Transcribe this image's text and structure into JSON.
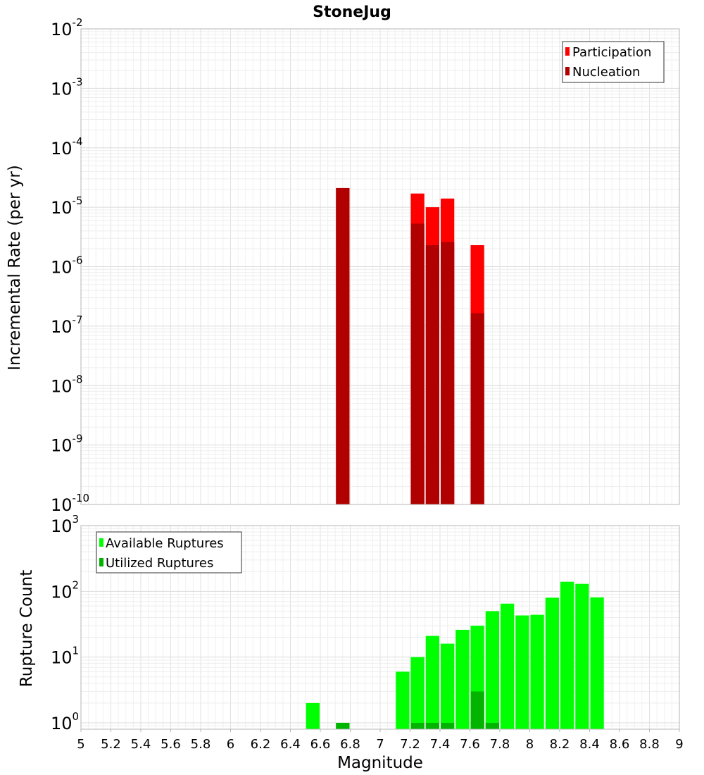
{
  "chart_data": [
    {
      "id": "rate",
      "type": "bar",
      "title": "StoneJug",
      "xlabel": "",
      "ylabel": "Incremental Rate (per yr)",
      "yscale": "log",
      "xlim": [
        5,
        9
      ],
      "ylim": [
        1e-10,
        0.01
      ],
      "ytick_exponents": [
        "-10",
        "-9",
        "-8",
        "-7",
        "-6",
        "-5",
        "-4",
        "-3",
        "-2"
      ],
      "ytick_base": "10",
      "legend": {
        "placement": "top-right",
        "entries": [
          {
            "label": "Participation",
            "color": "#ff0000"
          },
          {
            "label": "Nucleation",
            "color": "#b00000"
          }
        ]
      },
      "bin_width": 0.1,
      "series": [
        {
          "name": "Participation",
          "color": "#ff0000",
          "points": [
            {
              "x": 6.75,
              "y": 2.1e-05
            },
            {
              "x": 7.25,
              "y": 1.7e-05
            },
            {
              "x": 7.35,
              "y": 1e-05
            },
            {
              "x": 7.45,
              "y": 1.4e-05
            },
            {
              "x": 7.65,
              "y": 2.3e-06
            }
          ]
        },
        {
          "name": "Nucleation",
          "color": "#b00000",
          "points": [
            {
              "x": 6.75,
              "y": 2.1e-05
            },
            {
              "x": 7.25,
              "y": 5.3e-06
            },
            {
              "x": 7.35,
              "y": 2.3e-06
            },
            {
              "x": 7.45,
              "y": 2.6e-06
            },
            {
              "x": 7.65,
              "y": 1.65e-07
            }
          ]
        }
      ]
    },
    {
      "id": "count",
      "type": "bar",
      "title": "",
      "xlabel": "Magnitude",
      "ylabel": "Rupture Count",
      "yscale": "log",
      "xlim": [
        5,
        9
      ],
      "ylim": [
        0.8,
        1000
      ],
      "ytick_exponents": [
        "0",
        "1",
        "2",
        "3"
      ],
      "ytick_base": "10",
      "xtick_labels": [
        "5",
        "5.2",
        "5.4",
        "5.6",
        "5.8",
        "6",
        "6.2",
        "6.4",
        "6.6",
        "6.8",
        "7",
        "7.2",
        "7.4",
        "7.6",
        "7.8",
        "8",
        "8.2",
        "8.4",
        "8.6",
        "8.8",
        "9"
      ],
      "legend": {
        "placement": "top-left",
        "entries": [
          {
            "label": "Available Ruptures",
            "color": "#00ff00"
          },
          {
            "label": "Utilized Ruptures",
            "color": "#00b400"
          }
        ]
      },
      "bin_width": 0.1,
      "series": [
        {
          "name": "Available Ruptures",
          "color": "#00ff00",
          "points": [
            {
              "x": 6.55,
              "y": 2
            },
            {
              "x": 6.75,
              "y": 1
            },
            {
              "x": 7.15,
              "y": 6
            },
            {
              "x": 7.25,
              "y": 10
            },
            {
              "x": 7.35,
              "y": 21
            },
            {
              "x": 7.45,
              "y": 16
            },
            {
              "x": 7.55,
              "y": 26
            },
            {
              "x": 7.65,
              "y": 30
            },
            {
              "x": 7.75,
              "y": 50
            },
            {
              "x": 7.85,
              "y": 65
            },
            {
              "x": 7.95,
              "y": 43
            },
            {
              "x": 8.05,
              "y": 44
            },
            {
              "x": 8.15,
              "y": 80
            },
            {
              "x": 8.25,
              "y": 140
            },
            {
              "x": 8.35,
              "y": 130
            },
            {
              "x": 8.45,
              "y": 81
            }
          ]
        },
        {
          "name": "Utilized Ruptures",
          "color": "#00b400",
          "points": [
            {
              "x": 6.75,
              "y": 1
            },
            {
              "x": 7.25,
              "y": 1
            },
            {
              "x": 7.35,
              "y": 1
            },
            {
              "x": 7.45,
              "y": 1
            },
            {
              "x": 7.65,
              "y": 3
            },
            {
              "x": 7.75,
              "y": 1
            }
          ]
        }
      ]
    }
  ]
}
